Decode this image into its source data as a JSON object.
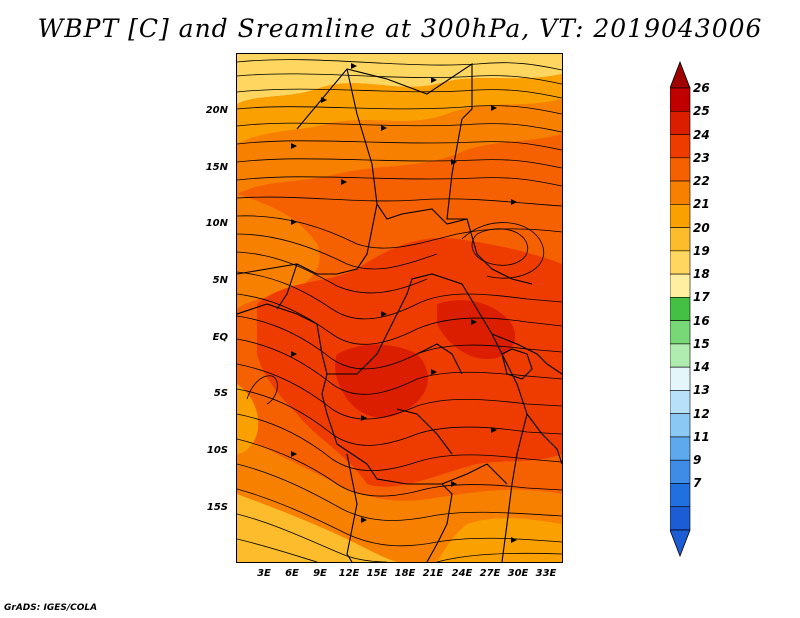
{
  "title": "WBPT [C] and Sreamline at 300hPa, VT: 2019043006",
  "credit": "GrADS: IGES/COLA",
  "map": {
    "y_axis_labels": [
      "20N",
      "15N",
      "10N",
      "5N",
      "EQ",
      "5S",
      "10S",
      "15S"
    ],
    "x_axis_labels": [
      "3E",
      "6E",
      "9E",
      "12E",
      "15E",
      "18E",
      "21E",
      "24E",
      "27E",
      "30E",
      "33E"
    ]
  },
  "colorbar": {
    "labels": [
      "26",
      "25",
      "24",
      "23",
      "22",
      "21",
      "20",
      "19",
      "18",
      "17",
      "16",
      "15",
      "14",
      "13",
      "12",
      "11",
      "9",
      "7"
    ],
    "colors": [
      "#c00000",
      "#dc1e00",
      "#ee3c00",
      "#f56000",
      "#f88000",
      "#faa000",
      "#fcbc2c",
      "#fed660",
      "#fef0a0",
      "#44c044",
      "#78d878",
      "#b0ecb0",
      "#e4f6fa",
      "#b8e0f8",
      "#8cc8f4",
      "#5ea8ee",
      "#3e8ce6",
      "#2070e0",
      "#1c5cd4"
    ]
  },
  "field_colors": {
    "c26": "#c00000",
    "c25": "#dc1e00",
    "c24": "#ee3c00",
    "c23": "#f56000",
    "c22": "#f88000",
    "c21": "#faa000",
    "c20": "#fcbc2c",
    "c19": "#fed660"
  }
}
